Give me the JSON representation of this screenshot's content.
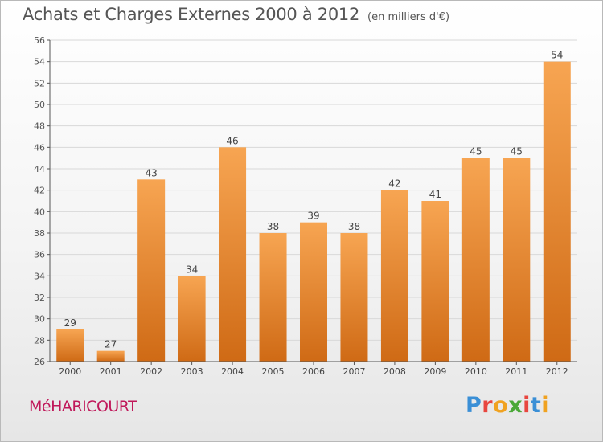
{
  "header": {
    "title": "Achats et Charges Externes 2000 à 2012",
    "unit": "(en milliers d'€)"
  },
  "footer": {
    "commune": "MéHARICOURT",
    "logo": {
      "text": "Proxiti",
      "letter_colors": [
        "#3a8fd6",
        "#e8463f",
        "#f0a220",
        "#4aa838",
        "#e8463f",
        "#3a8fd6",
        "#f0a220"
      ]
    }
  },
  "colors": {
    "bar_top": "#f7a552",
    "bar_bottom": "#cf6a15",
    "grid": "#d8d8d8",
    "axis": "#555555",
    "commune": "#c0185a"
  },
  "chart_data": {
    "type": "bar",
    "categories": [
      "2000",
      "2001",
      "2002",
      "2003",
      "2004",
      "2005",
      "2006",
      "2007",
      "2008",
      "2009",
      "2010",
      "2011",
      "2012"
    ],
    "values": [
      29,
      27,
      43,
      34,
      46,
      38,
      39,
      38,
      42,
      41,
      45,
      45,
      54
    ],
    "ylim": [
      26,
      56
    ],
    "yticks": [
      26,
      28,
      30,
      32,
      34,
      36,
      38,
      40,
      42,
      44,
      46,
      48,
      50,
      52,
      54,
      56
    ],
    "grid": true,
    "data_labels": true
  }
}
